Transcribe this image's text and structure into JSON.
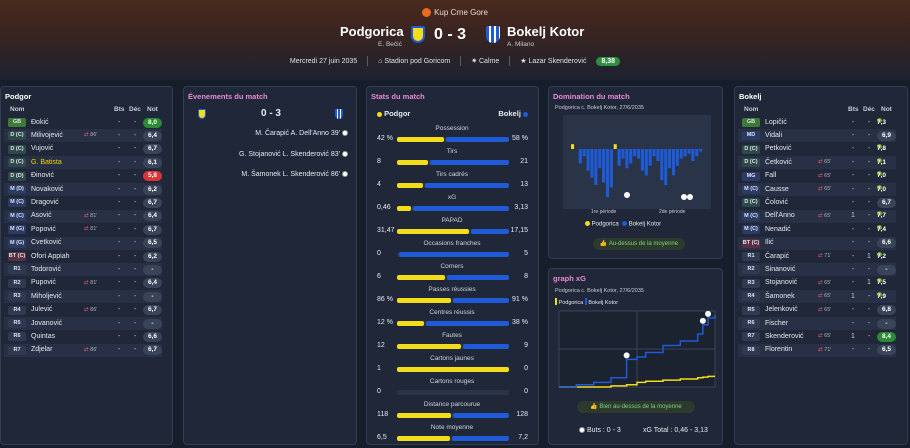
{
  "header": {
    "competition": "Kup Crne Gore",
    "home": "Podgorica",
    "away": "Bokelj Kotor",
    "home_coach": "E. Bečić",
    "away_coach": "A. Milano",
    "score": "0 - 3",
    "date": "Mercredi 27 juin 2035",
    "stadium": "Stadion pod Goricom",
    "weather": "Calme",
    "motm": "Lazar Skenderović",
    "motm_rating": "8,38"
  },
  "colors": {
    "home": "#f3dc1a",
    "away": "#1f5bd6",
    "accent": "#e88bd6"
  },
  "cols": {
    "name": "Nom",
    "bts": "Bts",
    "dec": "Déc",
    "note": "Not"
  },
  "left": {
    "title": "Podgor",
    "players": [
      {
        "pos": "GB",
        "name": "Đokić",
        "sub": "",
        "c1": "-",
        "c2": "-",
        "note": "8,0"
      },
      {
        "pos": "D (C)",
        "name": "Milivojević",
        "sub": "86'",
        "c1": "-",
        "c2": "-",
        "note": "6,4"
      },
      {
        "pos": "D (C)",
        "name": "Vujović",
        "sub": "",
        "c1": "-",
        "c2": "-",
        "note": "6,7"
      },
      {
        "pos": "D (C)",
        "name": "G. Batista",
        "sub": "",
        "c1": "-",
        "c2": "-",
        "note": "6,1"
      },
      {
        "pos": "D (D)",
        "name": "Đinović",
        "sub": "",
        "c1": "-",
        "c2": "-",
        "note": "5,8"
      },
      {
        "pos": "M (D)",
        "name": "Novaković",
        "sub": "",
        "c1": "-",
        "c2": "-",
        "note": "6,2"
      },
      {
        "pos": "M (C)",
        "name": "Dragović",
        "sub": "",
        "c1": "-",
        "c2": "-",
        "note": "6,7"
      },
      {
        "pos": "M (C)",
        "name": "Asović",
        "sub": "81'",
        "c1": "-",
        "c2": "-",
        "note": "6,4"
      },
      {
        "pos": "M (G)",
        "name": "Popović",
        "sub": "81'",
        "c1": "-",
        "c2": "-",
        "note": "6,7"
      },
      {
        "pos": "M (G)",
        "name": "Cvetković",
        "sub": "",
        "c1": "-",
        "c2": "-",
        "note": "6,5"
      },
      {
        "pos": "BT (C)",
        "name": "Ofori Appiah",
        "sub": "",
        "c1": "-",
        "c2": "-",
        "note": "6,2"
      },
      {
        "pos": "R1",
        "name": "Todorović",
        "sub": "",
        "c1": "-",
        "c2": "-",
        "note": "-"
      },
      {
        "pos": "R2",
        "name": "Pupović",
        "sub": "81'",
        "c1": "-",
        "c2": "-",
        "note": "6,4"
      },
      {
        "pos": "R3",
        "name": "Miholjević",
        "sub": "",
        "c1": "-",
        "c2": "-",
        "note": "-"
      },
      {
        "pos": "R4",
        "name": "Julević",
        "sub": "86'",
        "c1": "-",
        "c2": "-",
        "note": "6,7"
      },
      {
        "pos": "R5",
        "name": "Jovanović",
        "sub": "",
        "c1": "-",
        "c2": "-",
        "note": "-"
      },
      {
        "pos": "R6",
        "name": "Quintas",
        "sub": "",
        "c1": "-",
        "c2": "-",
        "note": "6,6"
      },
      {
        "pos": "R7",
        "name": "Zdjelar",
        "sub": "86'",
        "c1": "-",
        "c2": "-",
        "note": "6,7"
      }
    ]
  },
  "right": {
    "title": "Bokelj",
    "players": [
      {
        "pos": "GB",
        "name": "Lopičić",
        "sub": "",
        "c1": "-",
        "c2": "-",
        "note": "7,3"
      },
      {
        "pos": "MD",
        "name": "Vidali",
        "sub": "",
        "c1": "-",
        "c2": "-",
        "note": "6,9"
      },
      {
        "pos": "D (C)",
        "name": "Petković",
        "sub": "",
        "c1": "-",
        "c2": "-",
        "note": "7,8"
      },
      {
        "pos": "D (C)",
        "name": "Četković",
        "sub": "65'",
        "c1": "-",
        "c2": "-",
        "note": "7,1"
      },
      {
        "pos": "MG",
        "name": "Fall",
        "sub": "65'",
        "c1": "-",
        "c2": "-",
        "note": "7,0"
      },
      {
        "pos": "M (C)",
        "name": "Causse",
        "sub": "65'",
        "c1": "-",
        "c2": "-",
        "note": "7,0"
      },
      {
        "pos": "D (C)",
        "name": "Čolović",
        "sub": "",
        "c1": "-",
        "c2": "-",
        "note": "6,7"
      },
      {
        "pos": "M (C)",
        "name": "Dell'Anno",
        "sub": "65'",
        "c1": "1",
        "c2": "-",
        "note": "7,7"
      },
      {
        "pos": "M (C)",
        "name": "Nenadić",
        "sub": "",
        "c1": "-",
        "c2": "-",
        "note": "7,4"
      },
      {
        "pos": "BT (C)",
        "name": "Ilić",
        "sub": "",
        "c1": "-",
        "c2": "-",
        "note": "6,6"
      },
      {
        "pos": "R1",
        "name": "Čarapić",
        "sub": "71'",
        "c1": "-",
        "c2": "1",
        "note": "7,2"
      },
      {
        "pos": "R2",
        "name": "Sinanović",
        "sub": "",
        "c1": "-",
        "c2": "-",
        "note": "-"
      },
      {
        "pos": "R3",
        "name": "Stojanović",
        "sub": "65'",
        "c1": "-",
        "c2": "1",
        "note": "7,5"
      },
      {
        "pos": "R4",
        "name": "Šamonek",
        "sub": "65'",
        "c1": "1",
        "c2": "-",
        "note": "7,9"
      },
      {
        "pos": "R5",
        "name": "Jelenković",
        "sub": "65'",
        "c1": "-",
        "c2": "-",
        "note": "6,8"
      },
      {
        "pos": "R6",
        "name": "Fischer",
        "sub": "",
        "c1": "-",
        "c2": "-",
        "note": "-"
      },
      {
        "pos": "R7",
        "name": "Skenderović",
        "sub": "65'",
        "c1": "1",
        "c2": "-",
        "note": "8,4"
      },
      {
        "pos": "R8",
        "name": "Florentin",
        "sub": "71'",
        "c1": "-",
        "c2": "-",
        "note": "6,5"
      }
    ]
  },
  "events": {
    "title": "Évenements du match",
    "score": "0 - 3",
    "items": [
      "M. Čarapić A. Dell'Anno 39'",
      "G. Stojanović L. Skenderović 83'",
      "M. Šamonek L. Skenderović 86'"
    ]
  },
  "stats": {
    "title": "Stats du match",
    "home": "Podgor",
    "away": "Bokelj",
    "rows": [
      {
        "label": "Possession",
        "h": "42 %",
        "a": "58 %",
        "hv": 42,
        "av": 58
      },
      {
        "label": "Tirs",
        "h": "8",
        "a": "21",
        "hv": 8,
        "av": 21
      },
      {
        "label": "Tirs cadrés",
        "h": "4",
        "a": "13",
        "hv": 4,
        "av": 13
      },
      {
        "label": "xG",
        "h": "0,46",
        "a": "3,13",
        "hv": 0.46,
        "av": 3.13
      },
      {
        "label": "PAPAD",
        "h": "31,47",
        "a": "17,15",
        "hv": 31.47,
        "av": 17.15
      },
      {
        "label": "Occasions franches",
        "h": "0",
        "a": "5",
        "hv": 0,
        "av": 5
      },
      {
        "label": "Corners",
        "h": "6",
        "a": "8",
        "hv": 6,
        "av": 8
      },
      {
        "label": "Passes réussies",
        "h": "86 %",
        "a": "91 %",
        "hv": 86,
        "av": 91
      },
      {
        "label": "Centres réussis",
        "h": "12 %",
        "a": "38 %",
        "hv": 12,
        "av": 38
      },
      {
        "label": "Fautes",
        "h": "12",
        "a": "9",
        "hv": 12,
        "av": 9
      },
      {
        "label": "Cartons jaunes",
        "h": "1",
        "a": "0",
        "hv": 1,
        "av": 0
      },
      {
        "label": "Cartons rouges",
        "h": "0",
        "a": "0",
        "hv": 0,
        "av": 0
      },
      {
        "label": "Distance parcourue",
        "h": "118",
        "a": "128",
        "hv": 118,
        "av": 128
      },
      {
        "label": "Note moyenne",
        "h": "6,5",
        "a": "7,2",
        "hv": 6.5,
        "av": 7.2
      }
    ]
  },
  "domination": {
    "title": "Domination du match",
    "subtitle": "Podgorica c. Bokelj Kotor, 27/6/2035",
    "p1": "1re période",
    "p2": "2de période",
    "leg_home": "Podgorica",
    "leg_away": "Bokelj Kotor",
    "badge": "Au-dessus de la moyenne"
  },
  "xg": {
    "title": "graph xG",
    "subtitle": "Podgorica c. Bokelj Kotor, 27/6/2035",
    "leg_home": "Podgorica",
    "leg_away": "Bokelj Kotor",
    "badge": "Bien au-dessus de la moyenne",
    "footer_buts": "Buts : 0 - 3",
    "footer_xg": "xG Total : 0,46 - 3,13"
  },
  "chart_data": [
    {
      "type": "bar",
      "title": "Domination du match",
      "series": [
        {
          "name": "Podgorica",
          "values": [
            0.4,
            0,
            0,
            0,
            0,
            0,
            0,
            0,
            0,
            0,
            0,
            0.4,
            0,
            0,
            0,
            0,
            0,
            0,
            0,
            0,
            0,
            0,
            0,
            0,
            0,
            0,
            0,
            0,
            0,
            0,
            0,
            0,
            0,
            0
          ]
        },
        {
          "name": "Bokelj Kotor",
          "values": [
            0,
            0,
            1.2,
            0.6,
            1.8,
            2.4,
            3.0,
            1.6,
            2.8,
            4.0,
            3.2,
            0,
            1.4,
            0.8,
            1.6,
            1.2,
            0.6,
            0.8,
            1.8,
            2.2,
            1.4,
            0.6,
            1.0,
            2.6,
            3.0,
            1.6,
            2.2,
            1.4,
            0.8,
            0.6,
            0.4,
            1.0,
            0.6,
            0.2
          ]
        }
      ]
    },
    {
      "type": "line",
      "title": "graph xG",
      "x": [
        0,
        10,
        20,
        30,
        39,
        45,
        50,
        60,
        70,
        80,
        83,
        86,
        90
      ],
      "series": [
        {
          "name": "Podgorica",
          "values": [
            0,
            0,
            0,
            0.05,
            0.1,
            0.2,
            0.25,
            0.3,
            0.35,
            0.4,
            0.43,
            0.46,
            0.46
          ]
        },
        {
          "name": "Bokelj Kotor",
          "values": [
            0,
            0.1,
            0.2,
            0.4,
            1.2,
            1.3,
            1.5,
            1.8,
            2.0,
            2.3,
            2.7,
            3.0,
            3.13
          ]
        }
      ],
      "ylim": [
        0,
        3.3
      ]
    }
  ]
}
